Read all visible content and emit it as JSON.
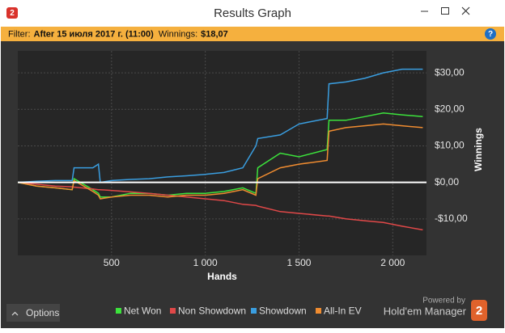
{
  "window": {
    "logo_text": "2",
    "title": "Results Graph"
  },
  "filter": {
    "label": "Filter:",
    "value": "After 15 июля 2017 г. (11:00)",
    "winnings_label": "Winnings:",
    "winnings": "$18,07",
    "help": "?"
  },
  "footer": {
    "options": "Options",
    "powered_by": "Powered by",
    "brand": "Hold'em Manager",
    "logo_text": "2"
  },
  "chart_data": {
    "type": "line",
    "x_label": "Hands",
    "y_label": "Winnings",
    "x": [
      0,
      100,
      200,
      290,
      300,
      400,
      430,
      440,
      500,
      600,
      700,
      800,
      900,
      1000,
      1100,
      1200,
      1270,
      1280,
      1400,
      1500,
      1650,
      1660,
      1750,
      1850,
      1950,
      2050,
      2160
    ],
    "series": [
      {
        "name": "Net Won",
        "color": "#3ce33c",
        "values": [
          0,
          -1,
          -1.5,
          -2,
          1,
          -2,
          -3,
          -4,
          -4,
          -3,
          -3,
          -3.5,
          -3,
          -3,
          -2.5,
          -1.5,
          -3,
          4,
          8,
          7,
          9,
          17,
          17,
          18,
          19,
          18.5,
          18
        ]
      },
      {
        "name": "Non Showdown",
        "color": "#e04848",
        "values": [
          0,
          -0.5,
          -1,
          -1.2,
          -1.3,
          -1.8,
          -2,
          -2,
          -2.2,
          -2.6,
          -3,
          -3.5,
          -4,
          -4.5,
          -5,
          -6,
          -6.3,
          -6.5,
          -8,
          -8.5,
          -9.2,
          -9.2,
          -10,
          -10.5,
          -11,
          -12,
          -13
        ]
      },
      {
        "name": "Showdown",
        "color": "#3a9ee0",
        "values": [
          0,
          0.3,
          0.5,
          0.5,
          4,
          4,
          5,
          0,
          0.5,
          0.8,
          1,
          1.5,
          1.8,
          2.2,
          2.7,
          4,
          10,
          12,
          13,
          16,
          17.5,
          27,
          27.5,
          28.5,
          30,
          31,
          31
        ]
      },
      {
        "name": "All-In EV",
        "color": "#f08c30",
        "values": [
          0,
          -1,
          -1.5,
          -2,
          0.5,
          -2.5,
          -3.5,
          -4.5,
          -4,
          -3.5,
          -3.5,
          -4,
          -3.5,
          -3.5,
          -3,
          -2,
          -3.5,
          1,
          4,
          5,
          6,
          14,
          15,
          15.5,
          16,
          15.5,
          15
        ]
      }
    ],
    "xlim": [
      0,
      2180
    ],
    "xticks": [
      500,
      {
        "value": 1000,
        "label": "1 000"
      },
      {
        "value": 1500,
        "label": "1 500"
      },
      {
        "value": 2000,
        "label": "2 000"
      }
    ],
    "ylim": [
      -20,
      36
    ],
    "yticks": [
      {
        "value": -10,
        "label": "-$10,00"
      },
      {
        "value": 0,
        "label": "$0,00"
      },
      {
        "value": 10,
        "label": "$10,00"
      },
      {
        "value": 20,
        "label": "$20,00"
      },
      {
        "value": 30,
        "label": "$30,00"
      }
    ],
    "grid": true,
    "zero_line": true,
    "legend": "bottom"
  }
}
